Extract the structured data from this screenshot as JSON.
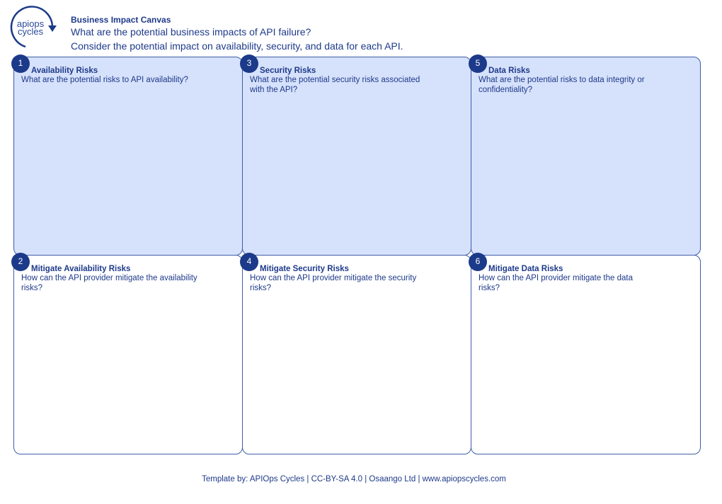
{
  "logo": {
    "line1": "apiops",
    "line2": "cycles"
  },
  "header": {
    "title": "Business Impact Canvas",
    "question": "What are the potential business impacts of API failure?",
    "subtitle": "Consider the potential impact on availability, security, and data for each API."
  },
  "boxes": [
    {
      "num": "1",
      "title": "Availability Risks",
      "desc": "What are the potential risks to API availability?"
    },
    {
      "num": "3",
      "title": "Security Risks",
      "desc": "What are the potential security risks associated with the API?"
    },
    {
      "num": "5",
      "title": "Data Risks",
      "desc": "What are the potential risks to data integrity or confidentiality?"
    },
    {
      "num": "2",
      "title": "Mitigate Availability Risks",
      "desc": "How can the API provider mitigate the availability risks?"
    },
    {
      "num": "4",
      "title": "Mitigate Security Risks",
      "desc": "How can the API provider mitigate the security risks?"
    },
    {
      "num": "6",
      "title": "Mitigate Data Risks",
      "desc": "How can the API provider mitigate the data risks?"
    }
  ],
  "footer": "Template by: APIOps Cycles | CC-BY-SA 4.0 | Osaango Ltd | www.apiopscycles.com",
  "colors": {
    "top_fill": "#d6e1fb",
    "border": "#3f5ea8",
    "accent": "#1c3a8a"
  }
}
